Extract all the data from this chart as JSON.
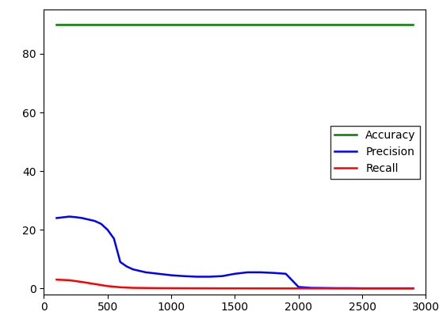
{
  "title": "",
  "xlabel": "",
  "ylabel": "",
  "xlim": [
    0,
    3000
  ],
  "ylim": [
    -2,
    95
  ],
  "x_ticks": [
    0,
    500,
    1000,
    1500,
    2000,
    2500,
    3000
  ],
  "y_ticks": [
    0,
    20,
    40,
    60,
    80
  ],
  "accuracy_x": [
    100,
    200,
    300,
    400,
    500,
    600,
    700,
    800,
    900,
    1000,
    1100,
    1200,
    1300,
    1400,
    1500,
    1600,
    1700,
    1800,
    1900,
    2000,
    2100,
    2200,
    2300,
    2400,
    2500,
    2600,
    2700,
    2800,
    2900
  ],
  "accuracy_y": [
    90,
    90,
    90,
    90,
    90,
    90,
    90,
    90,
    90,
    90,
    90,
    90,
    90,
    90,
    90,
    90,
    90,
    90,
    90,
    90,
    90,
    90,
    90,
    90,
    90,
    90,
    90,
    90,
    90
  ],
  "precision_x": [
    100,
    200,
    250,
    300,
    350,
    400,
    450,
    500,
    550,
    600,
    650,
    700,
    750,
    800,
    900,
    1000,
    1100,
    1200,
    1300,
    1400,
    1500,
    1600,
    1700,
    1800,
    1900,
    2000,
    2100,
    2200,
    2300,
    2400,
    2500,
    2600,
    2700,
    2800,
    2900
  ],
  "precision_y": [
    24,
    24.5,
    24.3,
    24,
    23.5,
    23,
    22,
    20,
    17,
    9,
    7.5,
    6.5,
    6,
    5.5,
    5,
    4.5,
    4.2,
    4.0,
    4.0,
    4.2,
    5.0,
    5.5,
    5.5,
    5.3,
    5.0,
    0.5,
    0.2,
    0.15,
    0.1,
    0.1,
    0.05,
    0.05,
    0.05,
    0.05,
    0.05
  ],
  "recall_x": [
    100,
    200,
    300,
    400,
    500,
    600,
    700,
    800,
    900,
    1000,
    1200,
    1400,
    1600,
    1800,
    2000,
    2200,
    2400,
    2600,
    2800,
    2900
  ],
  "recall_y": [
    3.0,
    2.8,
    2.2,
    1.5,
    0.8,
    0.4,
    0.2,
    0.15,
    0.1,
    0.08,
    0.05,
    0.03,
    0.02,
    0.01,
    0.01,
    0.0,
    0.0,
    0.0,
    0.0,
    0.0
  ],
  "accuracy_color": "#008000",
  "precision_color": "#0000ff",
  "recall_color": "#ff0000",
  "line_width": 1.8,
  "legend_labels": [
    "Accuracy",
    "Precision",
    "Recall"
  ],
  "legend_loc": "center right",
  "background_color": "#ffffff"
}
